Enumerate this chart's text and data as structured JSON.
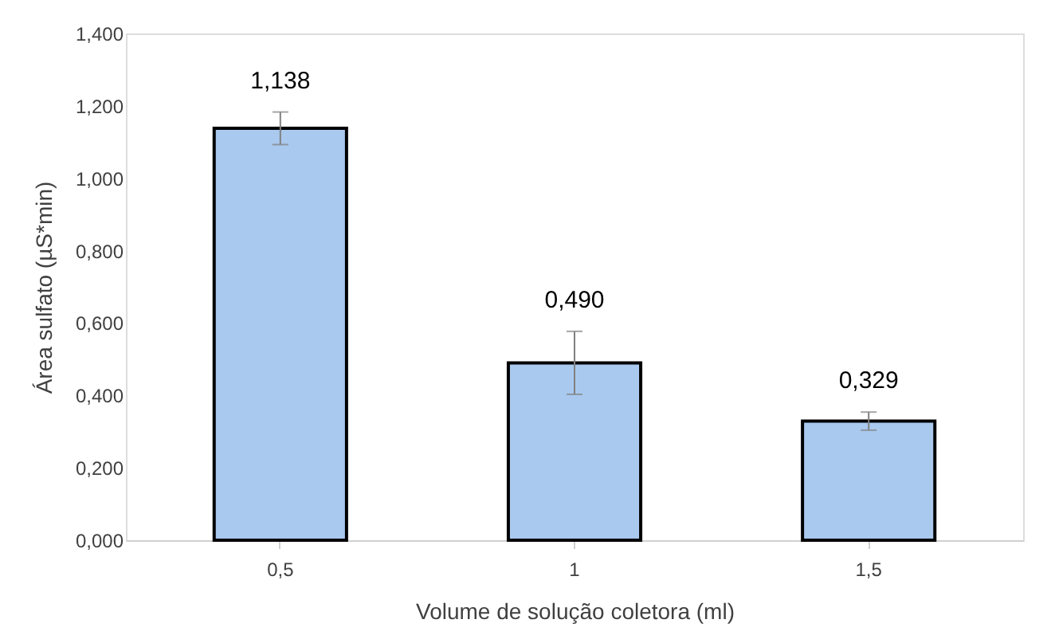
{
  "chart_data": {
    "type": "bar",
    "xlabel": "Volume de solução coletora (ml)",
    "ylabel": "Área sulfato (µS*min)",
    "categories": [
      "0,5",
      "1",
      "1,5"
    ],
    "series": [
      {
        "color": "#a9c9ef",
        "values": [
          1.138,
          0.49,
          0.329
        ],
        "errors": [
          0.045,
          0.087,
          0.025
        ],
        "value_labels": [
          "1,138",
          "0,490",
          "0,329"
        ]
      }
    ],
    "ylim": [
      0,
      1.4
    ],
    "yticks": [
      {
        "value": 0,
        "label": "0,000"
      },
      {
        "value": 0.2,
        "label": "0,200"
      },
      {
        "value": 0.4,
        "label": "0,400"
      },
      {
        "value": 0.6,
        "label": "0,600"
      },
      {
        "value": 0.8,
        "label": "0,800"
      },
      {
        "value": 1.0,
        "label": "1,000"
      },
      {
        "value": 1.2,
        "label": "1,200"
      },
      {
        "value": 1.4,
        "label": "1,400"
      }
    ],
    "grid": false
  }
}
